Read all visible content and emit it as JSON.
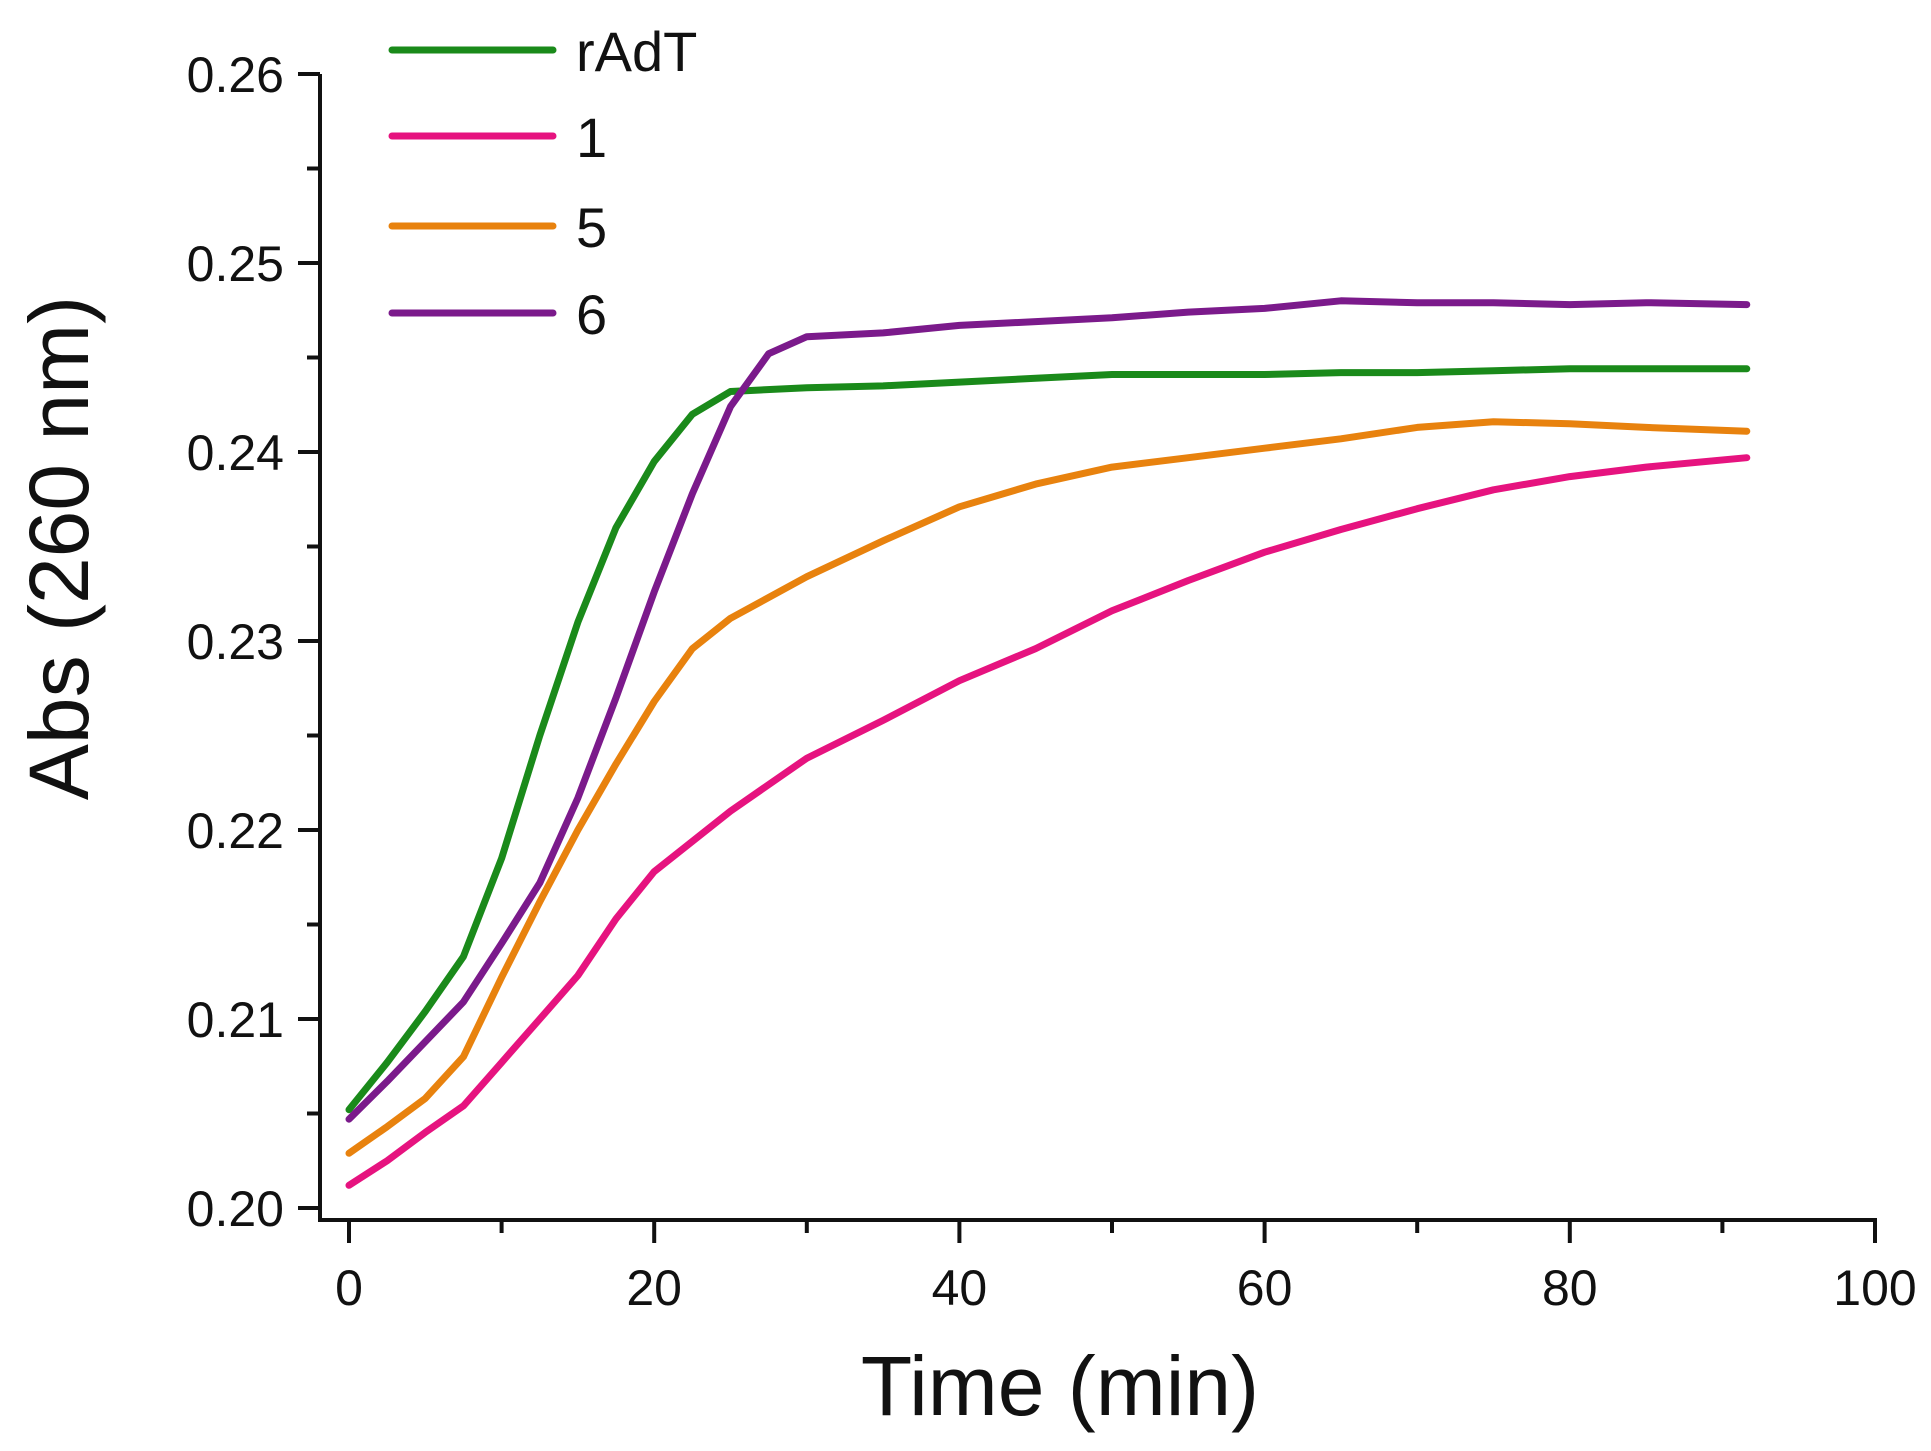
{
  "chart_data": {
    "type": "line",
    "title": "",
    "xlabel": "Time (min)",
    "ylabel": "Abs (260 nm)",
    "xlim": [
      0,
      100
    ],
    "ylim": [
      0.2,
      0.26
    ],
    "x_ticks": [
      0,
      20,
      40,
      60,
      80,
      100
    ],
    "x_tick_labels": [
      "0",
      "20",
      "40",
      "60",
      "80",
      "100"
    ],
    "x_minor_ticks": [
      10,
      30,
      50,
      70,
      90
    ],
    "y_ticks": [
      0.2,
      0.21,
      0.22,
      0.23,
      0.24,
      0.25,
      0.26
    ],
    "y_tick_labels": [
      "0.20",
      "0.21",
      "0.22",
      "0.23",
      "0.24",
      "0.25",
      "0.26"
    ],
    "y_minor_ticks": [
      0.205,
      0.215,
      0.225,
      0.235,
      0.245,
      0.255
    ],
    "grid": false,
    "legend_position": "top-left",
    "series": [
      {
        "name": "rAdT",
        "color": "#1a8a1a",
        "x": [
          0,
          2.5,
          5,
          7.5,
          10,
          12.5,
          15,
          17.5,
          20,
          22.5,
          25,
          30,
          35,
          40,
          45,
          50,
          55,
          60,
          65,
          70,
          75,
          80,
          85,
          91.6
        ],
        "y": [
          0.2052,
          0.2077,
          0.2104,
          0.2133,
          0.2185,
          0.225,
          0.231,
          0.236,
          0.2395,
          0.242,
          0.2432,
          0.2434,
          0.2435,
          0.2437,
          0.2439,
          0.2441,
          0.2441,
          0.2441,
          0.2442,
          0.2442,
          0.2443,
          0.2444,
          0.2444,
          0.2444
        ]
      },
      {
        "name": "1",
        "color": "#e6137f",
        "x": [
          0,
          2.5,
          5,
          7.5,
          10,
          12.5,
          15,
          17.5,
          20,
          25,
          30,
          35,
          40,
          45,
          50,
          55,
          60,
          65,
          70,
          75,
          80,
          85,
          91.6
        ],
        "y": [
          0.2012,
          0.2025,
          0.204,
          0.2054,
          0.2077,
          0.21,
          0.2123,
          0.2153,
          0.2178,
          0.221,
          0.2238,
          0.2258,
          0.2279,
          0.2296,
          0.2316,
          0.2332,
          0.2347,
          0.2359,
          0.237,
          0.238,
          0.2387,
          0.2392,
          0.2397
        ]
      },
      {
        "name": "5",
        "color": "#e8820e",
        "x": [
          0,
          2.5,
          5,
          7.5,
          10,
          12.5,
          15,
          17.5,
          20,
          22.5,
          25,
          30,
          35,
          40,
          45,
          50,
          55,
          60,
          65,
          70,
          75,
          80,
          85,
          91.6
        ],
        "y": [
          0.2029,
          0.2043,
          0.2058,
          0.208,
          0.2122,
          0.2162,
          0.22,
          0.2235,
          0.2268,
          0.2296,
          0.2312,
          0.2334,
          0.2353,
          0.2371,
          0.2383,
          0.2392,
          0.2397,
          0.2402,
          0.2407,
          0.2413,
          0.2416,
          0.2415,
          0.2413,
          0.2411
        ]
      },
      {
        "name": "6",
        "color": "#7b1a8b",
        "x": [
          0,
          2.5,
          5,
          7.5,
          10,
          12.5,
          15,
          17.5,
          20,
          22.5,
          25,
          27.5,
          30,
          35,
          40,
          45,
          50,
          55,
          60,
          65,
          70,
          75,
          80,
          85,
          91.6
        ],
        "y": [
          0.2047,
          0.2067,
          0.2088,
          0.2109,
          0.214,
          0.2172,
          0.2217,
          0.227,
          0.2326,
          0.2378,
          0.2424,
          0.2452,
          0.2461,
          0.2463,
          0.2467,
          0.2469,
          0.2471,
          0.2474,
          0.2476,
          0.248,
          0.2479,
          0.2479,
          0.2478,
          0.2479,
          0.2478
        ]
      }
    ]
  }
}
